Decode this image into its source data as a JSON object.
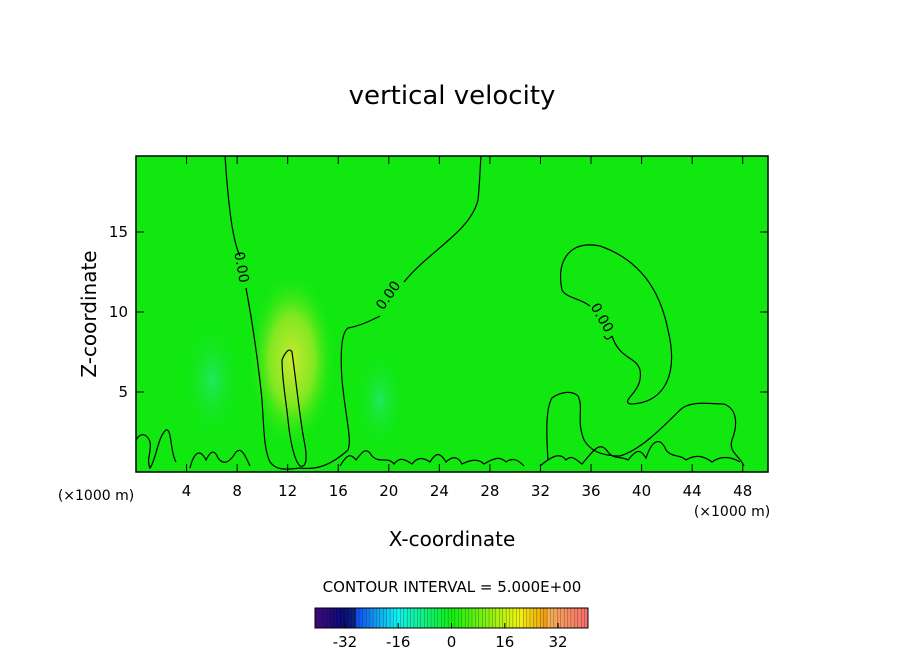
{
  "chart_data": {
    "type": "contour",
    "title": "vertical velocity",
    "x_label": "X-coordinate",
    "y_label": "Z-coordinate",
    "x_unit_label": "(×1000 m)",
    "xlim": [
      0,
      50
    ],
    "xticks": [
      4,
      8,
      12,
      16,
      20,
      24,
      28,
      32,
      36,
      40,
      44,
      48
    ],
    "ylim": [
      0,
      19.75
    ],
    "yticks": [
      5,
      10,
      15
    ],
    "zero_contour": {
      "value": 0,
      "label": "0.00"
    },
    "contour_interval_label": "CONTOUR INTERVAL = 5.000E+00",
    "colorbar": {
      "lim": [
        -41,
        41
      ],
      "ticks": [
        -32,
        -16,
        0,
        16,
        32
      ]
    }
  }
}
